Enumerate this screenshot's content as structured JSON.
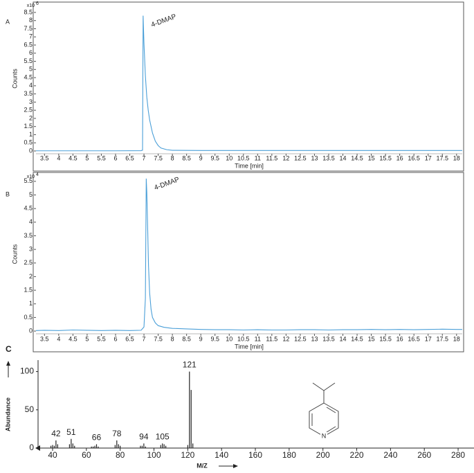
{
  "chart_data": [
    {
      "type": "line",
      "panel_label": "A",
      "y_label": "Counts",
      "x_label": "Time [min]",
      "y_multiplier": "x10",
      "y_exponent": "6",
      "annotation": "4-DMAP",
      "xlim": [
        3.2,
        18.2
      ],
      "ylim": [
        -0.17,
        9.05
      ],
      "xticks": [
        3.5,
        4,
        4.5,
        5,
        5.5,
        6,
        6.5,
        7,
        7.5,
        8,
        8.5,
        9,
        9.5,
        10,
        10.5,
        11,
        11.5,
        12,
        12.5,
        13,
        13.5,
        14,
        14.5,
        15,
        15.5,
        16,
        16.5,
        17,
        17.5,
        18
      ],
      "yticks": [
        0,
        0.5,
        1,
        1.5,
        2,
        2.5,
        3,
        3.5,
        4,
        4.5,
        5,
        5.5,
        6,
        6.5,
        7,
        7.5,
        8,
        8.5
      ],
      "series": [
        {
          "color": "#4a9fd8",
          "x": [
            3.2,
            4,
            5,
            6,
            6.9,
            6.95,
            6.97,
            7.0,
            7.05,
            7.1,
            7.15,
            7.2,
            7.3,
            7.4,
            7.5,
            7.6,
            7.8,
            8.0,
            9,
            12,
            15,
            18.2
          ],
          "values": [
            0.01,
            0.01,
            0.01,
            0.01,
            0.02,
            0.05,
            8.3,
            6.6,
            4.6,
            3.3,
            2.5,
            1.9,
            1.1,
            0.6,
            0.33,
            0.18,
            0.08,
            0.04,
            0.03,
            0.03,
            0.03,
            0.03
          ]
        }
      ]
    },
    {
      "type": "line",
      "panel_label": "B",
      "y_label": "Counts",
      "x_label": "Time [min]",
      "y_multiplier": "x10",
      "y_exponent": "4",
      "annotation": "4-DMAP",
      "xlim": [
        3.2,
        18.2
      ],
      "ylim": [
        -0.1,
        5.75
      ],
      "xticks": [
        3.5,
        4,
        4.5,
        5,
        5.5,
        6,
        6.5,
        7,
        7.5,
        8,
        8.5,
        9,
        9.5,
        10,
        10.5,
        11,
        11.5,
        12,
        12.5,
        13,
        13.5,
        14,
        14.5,
        15,
        15.5,
        16,
        16.5,
        17,
        17.5,
        18
      ],
      "yticks": [
        0,
        0.5,
        1,
        1.5,
        2,
        2.5,
        3,
        3.5,
        4,
        4.5,
        5,
        5.5
      ],
      "series": [
        {
          "color": "#4a9fd8",
          "x": [
            3.2,
            3.5,
            4,
            4.5,
            5,
            5.5,
            6,
            6.5,
            6.9,
            7.0,
            7.05,
            7.08,
            7.1,
            7.13,
            7.16,
            7.2,
            7.25,
            7.3,
            7.4,
            7.5,
            7.7,
            8,
            8.5,
            9,
            9.5,
            10,
            10.5,
            11,
            11.5,
            12,
            12.5,
            13,
            13.5,
            14,
            14.5,
            15,
            15.5,
            16,
            16.5,
            17,
            17.5,
            18,
            18.2
          ],
          "values": [
            0.02,
            0.03,
            0.02,
            0.04,
            0.03,
            0.02,
            0.03,
            0.02,
            0.03,
            0.15,
            1.2,
            5.6,
            5.1,
            3.8,
            2.4,
            1.4,
            0.8,
            0.5,
            0.3,
            0.2,
            0.14,
            0.1,
            0.08,
            0.06,
            0.05,
            0.05,
            0.04,
            0.05,
            0.04,
            0.04,
            0.05,
            0.05,
            0.04,
            0.05,
            0.05,
            0.06,
            0.05,
            0.06,
            0.05,
            0.06,
            0.07,
            0.06,
            0.06
          ]
        }
      ]
    },
    {
      "type": "stick",
      "panel_label": "C",
      "y_label": "Abundance",
      "x_label": "M/Z",
      "structure_atom": "N",
      "xlim": [
        31.4,
        289.4
      ],
      "ylim": [
        0,
        115
      ],
      "xticks": [
        40,
        60,
        80,
        100,
        120,
        140,
        160,
        180,
        200,
        220,
        240,
        260,
        280
      ],
      "yticks": [
        0,
        50,
        100
      ],
      "color": "#222222",
      "x": [
        39,
        40,
        41,
        42,
        43,
        50,
        51,
        52,
        53,
        63,
        64,
        65,
        66,
        67,
        77,
        78,
        79,
        80,
        92,
        93,
        94,
        95,
        104,
        105,
        106,
        107,
        120,
        121,
        122,
        123
      ],
      "values": [
        3,
        4,
        3,
        10,
        5,
        5,
        12,
        6,
        3,
        2,
        2,
        3,
        5,
        2,
        4,
        10,
        5,
        3,
        3,
        3,
        6,
        2,
        4,
        6,
        5,
        3,
        4,
        100,
        76,
        6
      ],
      "peak_labels": [
        42,
        51,
        66,
        78,
        94,
        105,
        121
      ]
    }
  ]
}
